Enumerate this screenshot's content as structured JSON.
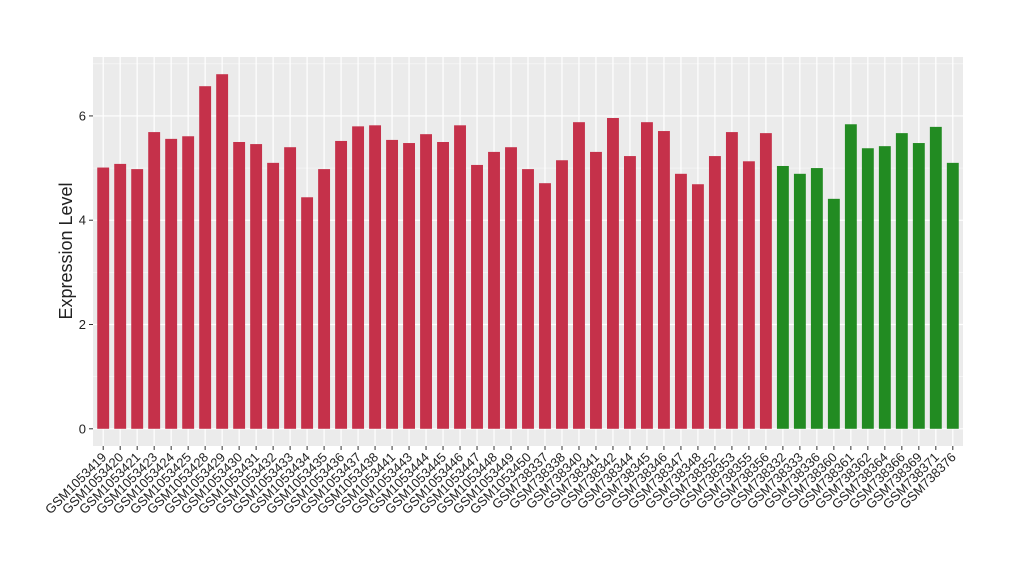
{
  "chart_data": {
    "type": "bar",
    "y_label": "Expression Level",
    "categories": [
      "GSM1053419",
      "GSM1053420",
      "GSM1053421",
      "GSM1053423",
      "GSM1053424",
      "GSM1053425",
      "GSM1053428",
      "GSM1053429",
      "GSM1053430",
      "GSM1053431",
      "GSM1053432",
      "GSM1053433",
      "GSM1053434",
      "GSM1053435",
      "GSM1053436",
      "GSM1053437",
      "GSM1053438",
      "GSM1053441",
      "GSM1053443",
      "GSM1053444",
      "GSM1053445",
      "GSM1053446",
      "GSM1053447",
      "GSM1053448",
      "GSM1053449",
      "GSM1053450",
      "GSM738337",
      "GSM738338",
      "GSM738340",
      "GSM738341",
      "GSM738342",
      "GSM738344",
      "GSM738345",
      "GSM738346",
      "GSM738347",
      "GSM738348",
      "GSM738352",
      "GSM738353",
      "GSM738355",
      "GSM738356",
      "GSM738332",
      "GSM738333",
      "GSM738336",
      "GSM738360",
      "GSM738361",
      "GSM738362",
      "GSM738364",
      "GSM738366",
      "GSM738369",
      "GSM738371",
      "GSM738376"
    ],
    "values": [
      5.01,
      5.08,
      4.98,
      5.69,
      5.56,
      5.61,
      6.57,
      6.8,
      5.5,
      5.46,
      5.1,
      5.4,
      4.44,
      4.98,
      5.52,
      5.8,
      5.82,
      5.54,
      5.48,
      5.65,
      5.5,
      5.82,
      5.06,
      5.31,
      5.4,
      4.98,
      4.71,
      5.15,
      5.88,
      5.31,
      5.96,
      5.23,
      5.88,
      5.71,
      4.89,
      4.69,
      5.23,
      5.69,
      5.13,
      5.67,
      5.04,
      4.89,
      5.0,
      4.41,
      5.84,
      5.38,
      5.42,
      5.67,
      5.48,
      5.79,
      5.1
    ],
    "colors": [
      "#c5314a",
      "#c5314a",
      "#c5314a",
      "#c5314a",
      "#c5314a",
      "#c5314a",
      "#c5314a",
      "#c5314a",
      "#c5314a",
      "#c5314a",
      "#c5314a",
      "#c5314a",
      "#c5314a",
      "#c5314a",
      "#c5314a",
      "#c5314a",
      "#c5314a",
      "#c5314a",
      "#c5314a",
      "#c5314a",
      "#c5314a",
      "#c5314a",
      "#c5314a",
      "#c5314a",
      "#c5314a",
      "#c5314a",
      "#c5314a",
      "#c5314a",
      "#c5314a",
      "#c5314a",
      "#c5314a",
      "#c5314a",
      "#c5314a",
      "#c5314a",
      "#c5314a",
      "#c5314a",
      "#c5314a",
      "#c5314a",
      "#c5314a",
      "#c5314a",
      "#228b22",
      "#228b22",
      "#228b22",
      "#228b22",
      "#228b22",
      "#228b22",
      "#228b22",
      "#228b22",
      "#228b22",
      "#228b22",
      "#228b22"
    ],
    "ylim": [
      -0.33,
      7.13
    ],
    "yticks": [
      0,
      2,
      4,
      6
    ],
    "grid": true
  }
}
